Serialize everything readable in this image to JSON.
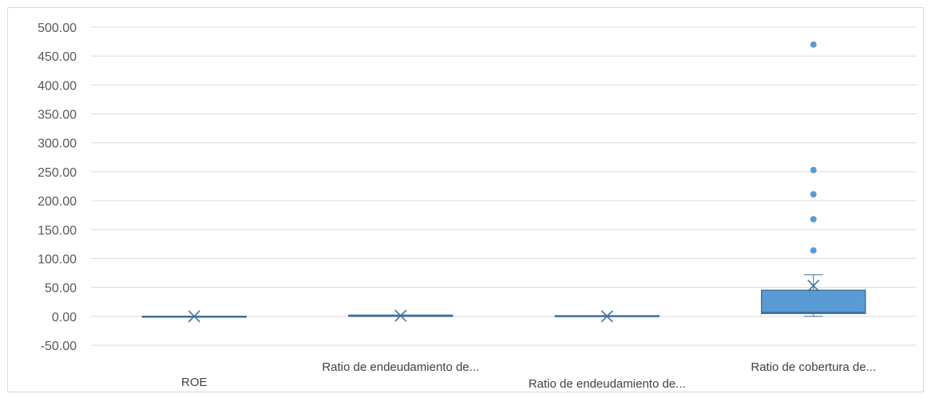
{
  "chart_data": {
    "type": "boxplot",
    "title": "",
    "xlabel": "",
    "ylabel": "",
    "ylim": [
      -50,
      500
    ],
    "y_ticks": [
      "500.00",
      "450.00",
      "400.00",
      "350.00",
      "300.00",
      "250.00",
      "200.00",
      "150.00",
      "100.00",
      "50.00",
      "0.00",
      "-50.00"
    ],
    "y_tick_values": [
      500,
      450,
      400,
      350,
      300,
      250,
      200,
      150,
      100,
      50,
      0,
      -50
    ],
    "grid": true,
    "legend": "none",
    "colors": {
      "box_fill": "#5b9bd5",
      "box_stroke": "#41719c",
      "outlier": "#5b9bd5",
      "grid": "#d9d9d9",
      "axis_text": "#595959"
    },
    "categories": [
      "ROE",
      "Ratio de endeudamiento de...",
      "Ratio de endeudamiento de...",
      "Ratio de cobertura de..."
    ],
    "boxes": [
      {
        "min": 0,
        "q1": 0,
        "median": 0,
        "q3": 0,
        "max": 0,
        "mean": 0,
        "outliers": []
      },
      {
        "min": 0,
        "q1": 0,
        "median": 1,
        "q3": 2,
        "max": 2,
        "mean": 1,
        "outliers": []
      },
      {
        "min": 0,
        "q1": 0,
        "median": 0,
        "q3": 1,
        "max": 1,
        "mean": 0,
        "outliers": []
      },
      {
        "min": 0,
        "q1": 5,
        "median": 7,
        "q3": 45,
        "max": 72,
        "mean": 53,
        "outliers": [
          114,
          168,
          211,
          253,
          470
        ]
      }
    ]
  }
}
